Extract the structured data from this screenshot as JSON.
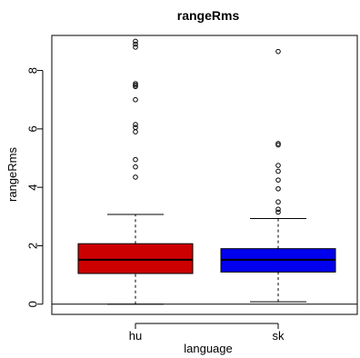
{
  "chart_data": {
    "type": "boxplot",
    "title": "rangeRms",
    "xlabel": "language",
    "ylabel": "rangeRms",
    "categories": [
      "hu",
      "sk"
    ],
    "ylim": [
      -0.35,
      9.2
    ],
    "yticks": [
      0,
      2,
      4,
      6,
      8
    ],
    "reference_line_y": 0,
    "boxes": [
      {
        "name": "hu",
        "color": "#cc0000",
        "whisker_low": 0,
        "q1": 1.05,
        "median": 1.52,
        "q3": 2.07,
        "whisker_high": 3.07,
        "outliers": [
          4.35,
          4.7,
          4.95,
          5.9,
          6.05,
          6.15,
          7.0,
          7.45,
          7.5,
          7.55,
          8.8,
          8.9,
          9.0
        ]
      },
      {
        "name": "sk",
        "color": "#0000ee",
        "whisker_low": 0.08,
        "q1": 1.1,
        "median": 1.52,
        "q3": 1.9,
        "whisker_high": 2.93,
        "outliers": [
          3.15,
          3.25,
          3.5,
          3.95,
          4.25,
          4.55,
          4.75,
          5.45,
          5.5,
          8.65
        ]
      }
    ]
  }
}
